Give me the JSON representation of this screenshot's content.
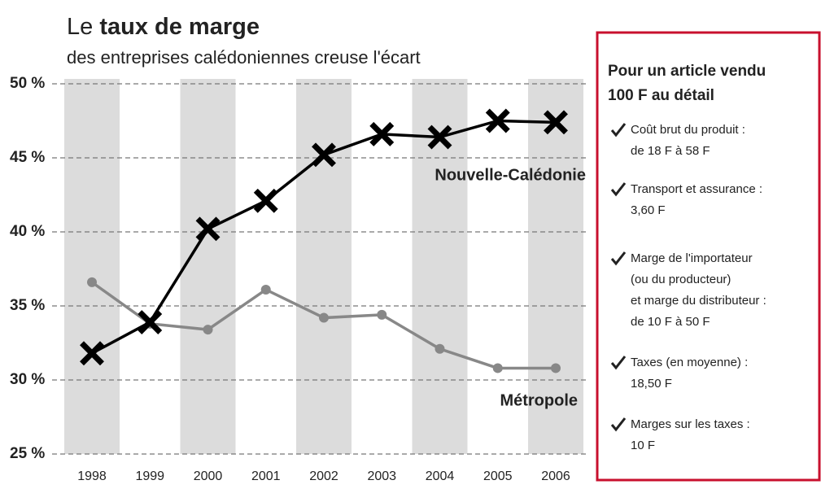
{
  "chart_data": {
    "type": "line",
    "title": [
      "Le ",
      "taux de marge"
    ],
    "subtitle": "des entreprises calédoniennes creuse l'écart",
    "categories": [
      "1998",
      "1999",
      "2000",
      "2001",
      "2002",
      "2003",
      "2004",
      "2005",
      "2006"
    ],
    "series": [
      {
        "name": "Nouvelle-Calédonie",
        "color": "#000000",
        "marker": "x",
        "values": [
          31.8,
          33.9,
          40.2,
          42.1,
          45.2,
          46.6,
          46.4,
          47.5,
          47.4
        ]
      },
      {
        "name": "Métropole",
        "color": "#888888",
        "marker": "circle",
        "values": [
          36.6,
          33.8,
          33.4,
          36.1,
          34.2,
          34.4,
          32.1,
          30.8,
          30.8
        ]
      }
    ],
    "ylim": [
      25,
      50
    ],
    "yticks": [
      {
        "value": 25,
        "label": "25 %"
      },
      {
        "value": 30,
        "label": "30 %"
      },
      {
        "value": 35,
        "label": "35 %"
      },
      {
        "value": 40,
        "label": "40 %"
      },
      {
        "value": 45,
        "label": "45 %"
      },
      {
        "value": 50,
        "label": "50 %"
      }
    ],
    "grid": true
  },
  "sidebar": {
    "title": [
      "Pour un article vendu",
      "100 F au détail"
    ],
    "items": [
      [
        "Coût brut du produit :",
        "de 18 F à 58 F"
      ],
      [
        "Transport et assurance :",
        "3,60 F"
      ],
      [
        "Marge de l'importateur",
        "(ou du producteur)",
        "et marge du distributeur :",
        "de 10 F à 50 F"
      ],
      [
        "Taxes (en moyenne) :",
        "18,50 F"
      ],
      [
        "Marges sur les taxes :",
        "10 F"
      ]
    ]
  }
}
